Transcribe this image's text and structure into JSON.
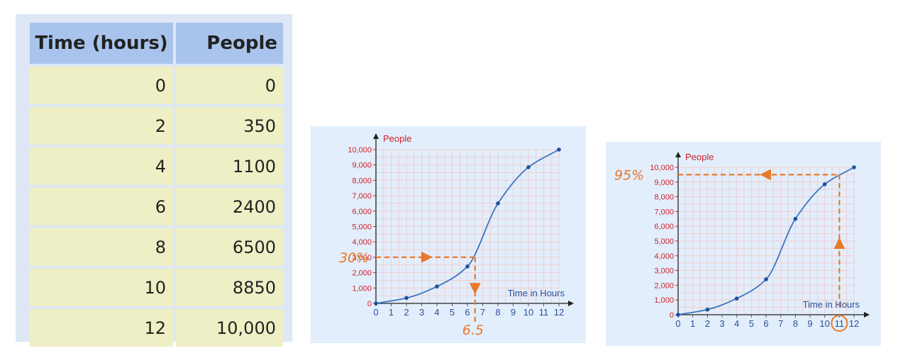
{
  "table": {
    "headers": [
      "Time (hours)",
      "People"
    ],
    "rows": [
      [
        "0",
        "0"
      ],
      [
        "2",
        "350"
      ],
      [
        "4",
        "1100"
      ],
      [
        "6",
        "2400"
      ],
      [
        "8",
        "6500"
      ],
      [
        "10",
        "8850"
      ],
      [
        "12",
        "10,000"
      ]
    ]
  },
  "colors": {
    "table_header": "#a9c4ec",
    "table_cell": "#efefc5",
    "chart_bg": "#e2eefb",
    "curve": "#3a75c4",
    "axis_red": "#d0202c",
    "tick_blue": "#2a4f9a",
    "annotation": "#e8782a"
  },
  "chart_data": [
    {
      "type": "line",
      "xlabel": "Time in Hours",
      "ylabel": "People",
      "x": [
        0,
        2,
        4,
        6,
        8,
        10,
        12
      ],
      "series": [
        {
          "values": [
            0,
            350,
            1100,
            2400,
            6500,
            8850,
            10000
          ]
        }
      ],
      "xlim": [
        0,
        12
      ],
      "ylim": [
        0,
        10000
      ],
      "xticks": [
        "0",
        "1",
        "2",
        "3",
        "4",
        "5",
        "6",
        "7",
        "8",
        "9",
        "10",
        "11",
        "12"
      ],
      "yticks": [
        "0",
        "1,000",
        "2,000",
        "3,000",
        "4,000",
        "5,000",
        "6,000",
        "7,000",
        "8,000",
        "9,000",
        "10,000"
      ],
      "grid": true,
      "annotations": [
        {
          "label": "30%",
          "y": 3000
        },
        {
          "label": "6.5",
          "x": 6.5
        }
      ]
    },
    {
      "type": "line",
      "xlabel": "Time in Hours",
      "ylabel": "People",
      "x": [
        0,
        2,
        4,
        6,
        8,
        10,
        12
      ],
      "series": [
        {
          "values": [
            0,
            350,
            1100,
            2400,
            6500,
            8850,
            10000
          ]
        }
      ],
      "xlim": [
        0,
        12
      ],
      "ylim": [
        0,
        10000
      ],
      "xticks": [
        "0",
        "1",
        "2",
        "3",
        "4",
        "5",
        "6",
        "7",
        "8",
        "9",
        "10",
        "11",
        "12"
      ],
      "yticks": [
        "0",
        "1,000",
        "2,000",
        "3,000",
        "4,000",
        "5,000",
        "6,000",
        "7,000",
        "8,000",
        "9,000",
        "10,000"
      ],
      "grid": true,
      "annotations": [
        {
          "label": "95%",
          "y": 9500
        },
        {
          "label": "11",
          "x": 11
        }
      ]
    }
  ]
}
